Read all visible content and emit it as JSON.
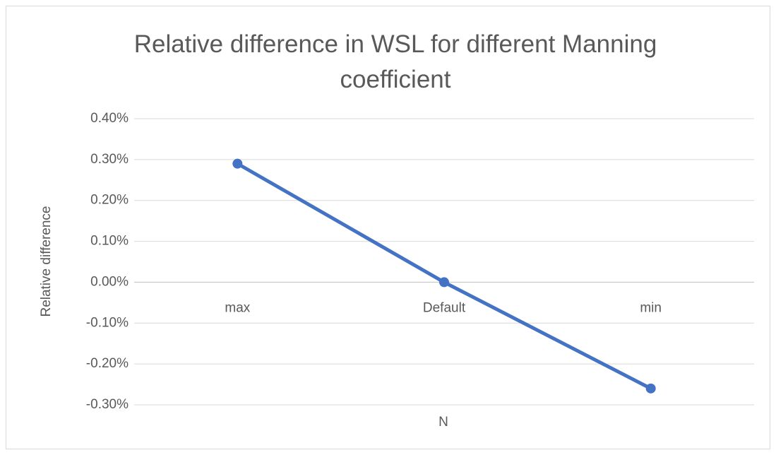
{
  "chart_data": {
    "type": "line",
    "title": "Relative difference in WSL for different Manning coefficient",
    "x_label": "N",
    "y_label": "Relative difference",
    "categories": [
      "max",
      "Default",
      "min"
    ],
    "series": [
      {
        "name": "Relative difference",
        "color": "#4472c4",
        "values": [
          0.29,
          0,
          -0.26
        ]
      }
    ],
    "ylim": [
      -0.3,
      0.4
    ],
    "yticks": [
      {
        "value": -0.3,
        "label": "-0.30%"
      },
      {
        "value": -0.2,
        "label": "-0.20%"
      },
      {
        "value": -0.1,
        "label": "-0.10%"
      },
      {
        "value": 0,
        "label": "0.00%"
      },
      {
        "value": 0.1,
        "label": "0.10%"
      },
      {
        "value": 0.2,
        "label": "0.20%"
      },
      {
        "value": 0.3,
        "label": "0.30%"
      },
      {
        "value": 0.4,
        "label": "0.40%"
      }
    ],
    "grid": true
  }
}
